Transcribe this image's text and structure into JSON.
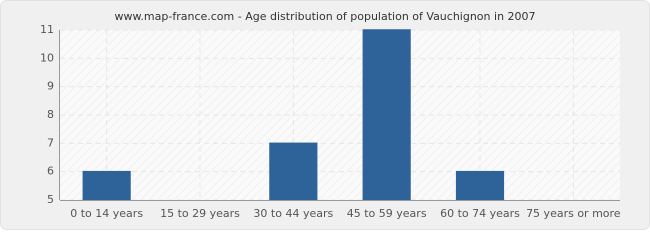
{
  "chart_data": {
    "type": "bar",
    "title": "www.map-france.com - Age distribution of population of Vauchignon in 2007",
    "categories": [
      "0 to 14 years",
      "15 to 29 years",
      "30 to 44 years",
      "45 to 59 years",
      "60 to 74 years",
      "75 years or more"
    ],
    "values": [
      6,
      5,
      7,
      11,
      6,
      5
    ],
    "color": "#2e6399",
    "ylim": [
      5,
      11
    ],
    "yticks": [
      5,
      6,
      7,
      8,
      9,
      10,
      11
    ],
    "grid": true
  }
}
